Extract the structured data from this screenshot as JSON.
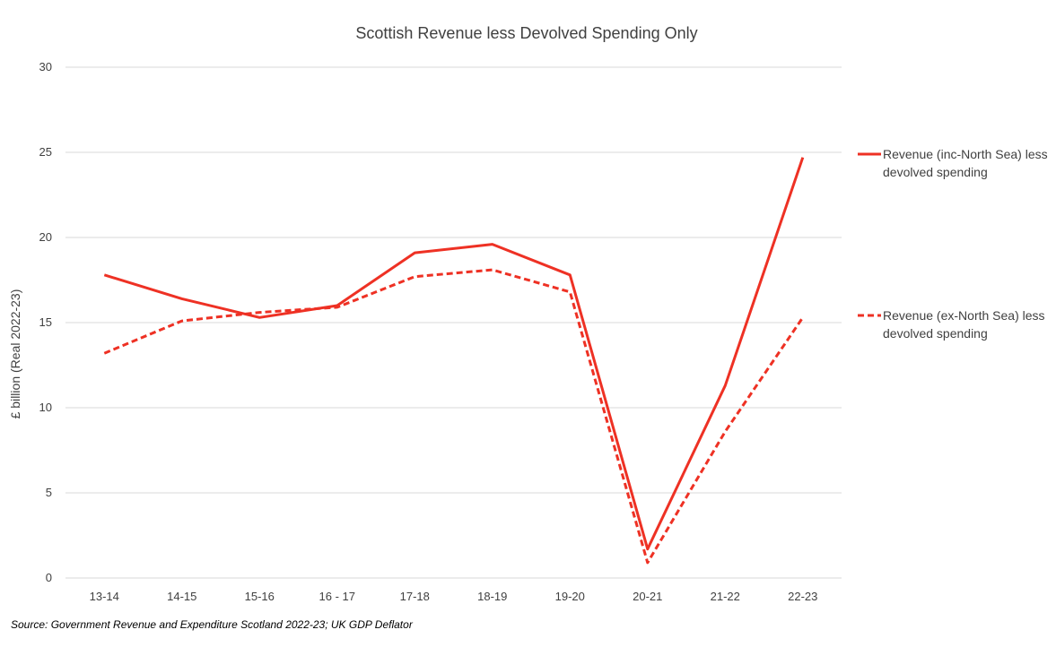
{
  "chart_data": {
    "type": "line",
    "title": "Scottish Revenue less Devolved Spending Only",
    "ylabel": "£ billion (Real 2022-23)",
    "xlabel": "",
    "categories": [
      "13-14",
      "14-15",
      "15-16",
      "16 - 17",
      "17-18",
      "18-19",
      "19-20",
      "20-21",
      "21-22",
      "22-23"
    ],
    "ylim": [
      0,
      30
    ],
    "yticks": [
      "0",
      "5",
      "10",
      "15",
      "20",
      "25",
      "30"
    ],
    "grid": true,
    "legend_position": "right",
    "series": [
      {
        "name": "Revenue (inc-North Sea) less devolved spending",
        "name_lines": [
          "Revenue (inc-North Sea) less",
          "devolved spending"
        ],
        "style": "solid",
        "color": "#ee3124",
        "values": [
          17.8,
          16.4,
          15.3,
          16.0,
          19.1,
          19.6,
          17.8,
          1.7,
          11.3,
          24.7
        ]
      },
      {
        "name": "Revenue (ex-North Sea) less devolved spending",
        "name_lines": [
          "Revenue (ex-North Sea) less",
          "devolved spending"
        ],
        "style": "dashed",
        "color": "#ee3124",
        "values": [
          13.2,
          15.1,
          15.6,
          15.9,
          17.7,
          18.1,
          16.8,
          0.9,
          8.6,
          15.3
        ]
      }
    ]
  },
  "source_note": "Source: Government Revenue and Expenditure Scotland 2022-23; UK GDP Deflator"
}
